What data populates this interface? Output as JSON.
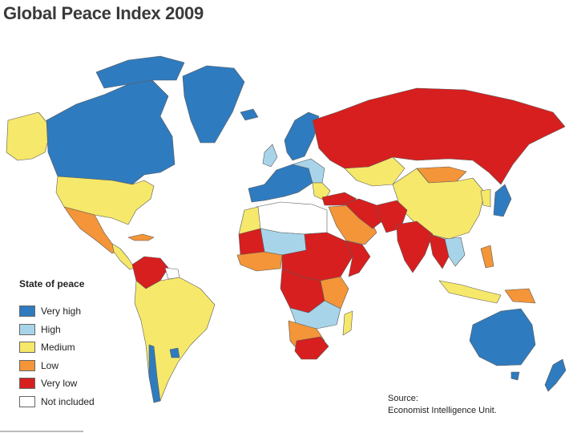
{
  "title": "Global Peace Index 2009",
  "legend": {
    "title": "State of peace",
    "items": [
      {
        "label": "Very high",
        "color": "#2f7bbf"
      },
      {
        "label": "High",
        "color": "#a8d4ea"
      },
      {
        "label": "Medium",
        "color": "#f6e86a"
      },
      {
        "label": "Low",
        "color": "#f39538"
      },
      {
        "label": "Very low",
        "color": "#d71f1f"
      },
      {
        "label": "Not included",
        "color": "#ffffff"
      }
    ]
  },
  "source": {
    "line1": "Source:",
    "line2": "Economist Intelligence Unit."
  },
  "colors": {
    "very_high": "#2f7bbf",
    "high": "#a8d4ea",
    "medium": "#f6e86a",
    "low": "#f39538",
    "very_low": "#d71f1f",
    "border": "#5a5a5a"
  }
}
